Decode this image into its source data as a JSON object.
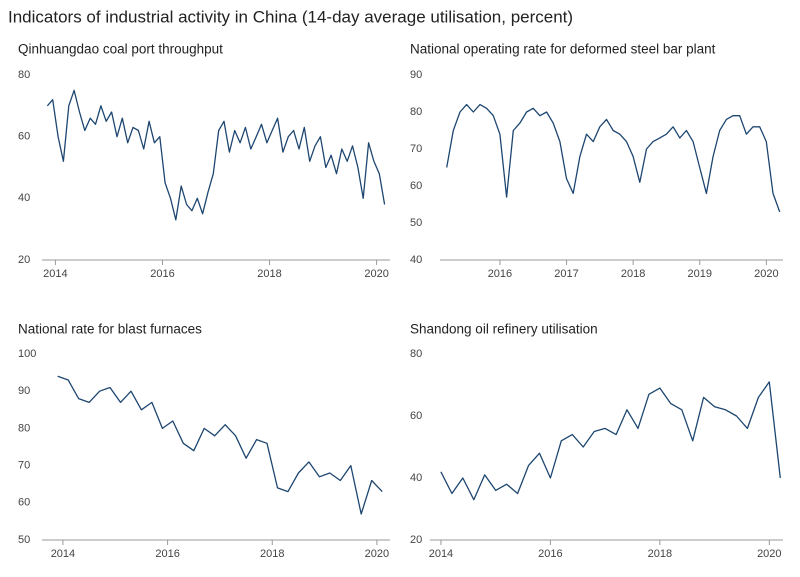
{
  "title": "Indicators of industrial activity in China (14-day average utilisation, percent)",
  "chart_data": [
    {
      "type": "line",
      "title": "Qinhuangdao coal port throughput",
      "color": "#1d4670",
      "xlim": [
        2013.75,
        2020.25
      ],
      "xticks": [
        2014,
        2016,
        2018,
        2020
      ],
      "ylim": [
        20,
        80
      ],
      "yticks": [
        20,
        40,
        60,
        80
      ],
      "x": [
        2013.85,
        2013.95,
        2014.05,
        2014.15,
        2014.25,
        2014.35,
        2014.45,
        2014.55,
        2014.65,
        2014.75,
        2014.85,
        2014.95,
        2015.05,
        2015.15,
        2015.25,
        2015.35,
        2015.45,
        2015.55,
        2015.65,
        2015.75,
        2015.85,
        2015.95,
        2016.05,
        2016.15,
        2016.25,
        2016.35,
        2016.45,
        2016.55,
        2016.65,
        2016.75,
        2016.85,
        2016.95,
        2017.05,
        2017.15,
        2017.25,
        2017.35,
        2017.45,
        2017.55,
        2017.65,
        2017.75,
        2017.85,
        2017.95,
        2018.05,
        2018.15,
        2018.25,
        2018.35,
        2018.45,
        2018.55,
        2018.65,
        2018.75,
        2018.85,
        2018.95,
        2019.05,
        2019.15,
        2019.25,
        2019.35,
        2019.45,
        2019.55,
        2019.65,
        2019.75,
        2019.85,
        2019.95,
        2020.05,
        2020.15
      ],
      "values": [
        70,
        72,
        60,
        52,
        70,
        75,
        68,
        62,
        66,
        64,
        70,
        65,
        68,
        60,
        66,
        58,
        63,
        62,
        56,
        65,
        58,
        60,
        45,
        40,
        33,
        44,
        38,
        36,
        40,
        35,
        42,
        48,
        62,
        65,
        55,
        62,
        58,
        63,
        56,
        60,
        64,
        58,
        62,
        66,
        55,
        60,
        62,
        56,
        63,
        52,
        57,
        60,
        50,
        54,
        48,
        56,
        52,
        57,
        50,
        40,
        58,
        52,
        48,
        38
      ]
    },
    {
      "type": "line",
      "title": "National operating rate for deformed steel bar plant",
      "color": "#1d4670",
      "xlim": [
        2015.1,
        2020.25
      ],
      "xticks": [
        2016,
        2017,
        2018,
        2019,
        2020
      ],
      "ylim": [
        40,
        90
      ],
      "yticks": [
        40,
        50,
        60,
        70,
        80,
        90
      ],
      "x": [
        2015.2,
        2015.3,
        2015.4,
        2015.5,
        2015.6,
        2015.7,
        2015.8,
        2015.9,
        2016.0,
        2016.1,
        2016.2,
        2016.3,
        2016.4,
        2016.5,
        2016.6,
        2016.7,
        2016.8,
        2016.9,
        2017.0,
        2017.1,
        2017.2,
        2017.3,
        2017.4,
        2017.5,
        2017.6,
        2017.7,
        2017.8,
        2017.9,
        2018.0,
        2018.1,
        2018.2,
        2018.3,
        2018.4,
        2018.5,
        2018.6,
        2018.7,
        2018.8,
        2018.9,
        2019.0,
        2019.1,
        2019.2,
        2019.3,
        2019.4,
        2019.5,
        2019.6,
        2019.7,
        2019.8,
        2019.9,
        2020.0,
        2020.1,
        2020.2
      ],
      "values": [
        65,
        75,
        80,
        82,
        80,
        82,
        81,
        79,
        74,
        57,
        75,
        77,
        80,
        81,
        79,
        80,
        77,
        72,
        62,
        58,
        68,
        74,
        72,
        76,
        78,
        75,
        74,
        72,
        68,
        61,
        70,
        72,
        73,
        74,
        76,
        73,
        75,
        72,
        65,
        58,
        68,
        75,
        78,
        79,
        79,
        74,
        76,
        76,
        72,
        58,
        53
      ]
    },
    {
      "type": "line",
      "title": "National rate for blast furnaces",
      "color": "#1d4670",
      "xlim": [
        2013.6,
        2020.25
      ],
      "xticks": [
        2014,
        2016,
        2018,
        2020
      ],
      "ylim": [
        50,
        100
      ],
      "yticks": [
        50,
        60,
        70,
        80,
        90,
        100
      ],
      "x": [
        2013.9,
        2014.1,
        2014.3,
        2014.5,
        2014.7,
        2014.9,
        2015.1,
        2015.3,
        2015.5,
        2015.7,
        2015.9,
        2016.1,
        2016.3,
        2016.5,
        2016.7,
        2016.9,
        2017.1,
        2017.3,
        2017.5,
        2017.7,
        2017.9,
        2018.1,
        2018.3,
        2018.5,
        2018.7,
        2018.9,
        2019.1,
        2019.3,
        2019.5,
        2019.7,
        2019.9,
        2020.1
      ],
      "values": [
        94,
        93,
        88,
        87,
        90,
        91,
        87,
        90,
        85,
        87,
        80,
        82,
        76,
        74,
        80,
        78,
        81,
        78,
        72,
        77,
        76,
        64,
        63,
        68,
        71,
        67,
        68,
        66,
        70,
        57,
        66,
        63
      ]
    },
    {
      "type": "line",
      "title": "Shandong oil refinery utilisation",
      "color": "#1d4670",
      "xlim": [
        2013.8,
        2020.25
      ],
      "xticks": [
        2014,
        2016,
        2018,
        2020
      ],
      "ylim": [
        20,
        80
      ],
      "yticks": [
        20,
        40,
        60,
        80
      ],
      "x": [
        2014.0,
        2014.2,
        2014.4,
        2014.6,
        2014.8,
        2015.0,
        2015.2,
        2015.4,
        2015.6,
        2015.8,
        2016.0,
        2016.2,
        2016.4,
        2016.6,
        2016.8,
        2017.0,
        2017.2,
        2017.4,
        2017.6,
        2017.8,
        2018.0,
        2018.2,
        2018.4,
        2018.6,
        2018.8,
        2019.0,
        2019.2,
        2019.4,
        2019.6,
        2019.8,
        2020.0,
        2020.2
      ],
      "values": [
        42,
        35,
        40,
        33,
        41,
        36,
        38,
        35,
        44,
        48,
        40,
        52,
        54,
        50,
        55,
        56,
        54,
        62,
        56,
        67,
        69,
        64,
        62,
        52,
        66,
        63,
        62,
        60,
        56,
        66,
        71,
        40
      ]
    }
  ]
}
